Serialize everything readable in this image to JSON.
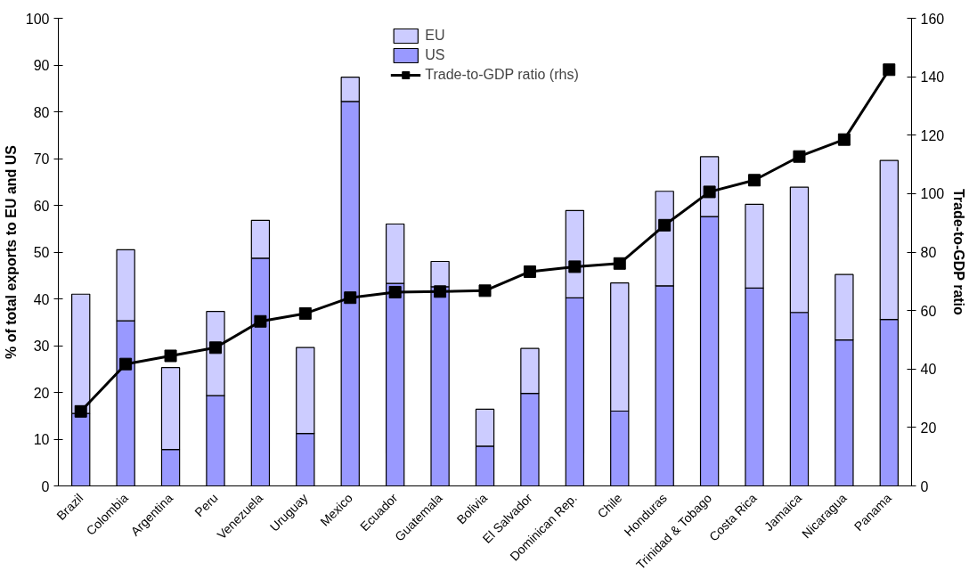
{
  "chart_data": {
    "type": "bar",
    "stacked": true,
    "categories": [
      "Brazil",
      "Colombia",
      "Argentina",
      "Peru",
      "Venezuela",
      "Uruguay",
      "Mexico",
      "Ecuador",
      "Guatemala",
      "Bolivia",
      "El Salvador",
      "Dominican Rep.",
      "Chile",
      "Honduras",
      "Trinidad & Tobago",
      "Costa Rica",
      "Jamaica",
      "Nicaragua",
      "Panama"
    ],
    "series": [
      {
        "name": "US",
        "color": "#9999ff",
        "values": [
          15.5,
          35.3,
          7.8,
          19.3,
          48.7,
          11.2,
          82.2,
          43.3,
          42.6,
          8.5,
          19.8,
          40.2,
          16,
          42.8,
          57.6,
          42.3,
          37.1,
          31.2,
          35.6
        ]
      },
      {
        "name": "EU",
        "color": "#ccccff",
        "values": [
          25.5,
          15.2,
          17.5,
          18,
          8.1,
          18.4,
          5.2,
          12.7,
          5.4,
          7.9,
          9.6,
          18.7,
          27.4,
          20.2,
          12.8,
          17.9,
          26.8,
          14,
          34
        ]
      },
      {
        "name": "Trade-to-GDP ratio (rhs)",
        "type": "line",
        "axis": "y2",
        "color": "#000000",
        "marker": "square",
        "values": [
          25.5,
          41.7,
          44.5,
          47.3,
          56.3,
          59,
          64.4,
          66.3,
          66.5,
          66.8,
          73.3,
          75,
          76.1,
          89.2,
          100.6,
          104.6,
          112.7,
          118.5,
          142.4
        ]
      }
    ],
    "ylabel": "% of total exports to EU and US",
    "y2label": "Trade-to-GDP ratio",
    "ylim": [
      0,
      100
    ],
    "yticks": [
      0,
      10,
      20,
      30,
      40,
      50,
      60,
      70,
      80,
      90,
      100
    ],
    "y2lim": [
      0,
      160
    ],
    "y2ticks": [
      0,
      20,
      40,
      60,
      80,
      100,
      120,
      140,
      160
    ],
    "grid": false,
    "legend": "top"
  }
}
